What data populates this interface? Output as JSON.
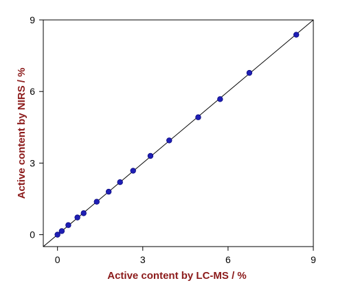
{
  "chart_data": {
    "type": "scatter",
    "title": "",
    "xlabel": "Active content by LC-MS / %",
    "ylabel": "Active content by NIRS / %",
    "xlim": [
      -0.5,
      9
    ],
    "ylim": [
      -0.5,
      9
    ],
    "xticks": [
      "0",
      "3",
      "6",
      "9"
    ],
    "yticks": [
      "0",
      "3",
      "6",
      "9"
    ],
    "grid": false,
    "legend": "none",
    "reference_line": {
      "from": [
        -0.5,
        -0.5
      ],
      "to": [
        9,
        9
      ]
    },
    "series": [
      {
        "x": [
          0.0,
          0.15,
          0.38,
          0.7,
          0.92,
          1.38,
          1.8,
          2.2,
          2.66,
          3.27,
          3.93,
          4.95,
          5.72,
          6.75,
          8.4
        ],
        "y": [
          0.0,
          0.15,
          0.4,
          0.72,
          0.9,
          1.38,
          1.8,
          2.2,
          2.68,
          3.3,
          3.95,
          4.92,
          5.68,
          6.78,
          8.38
        ]
      }
    ],
    "colors": {
      "marker": "#1f1fb4",
      "axis_title": "#8b1a1a",
      "line": "#000000"
    }
  }
}
